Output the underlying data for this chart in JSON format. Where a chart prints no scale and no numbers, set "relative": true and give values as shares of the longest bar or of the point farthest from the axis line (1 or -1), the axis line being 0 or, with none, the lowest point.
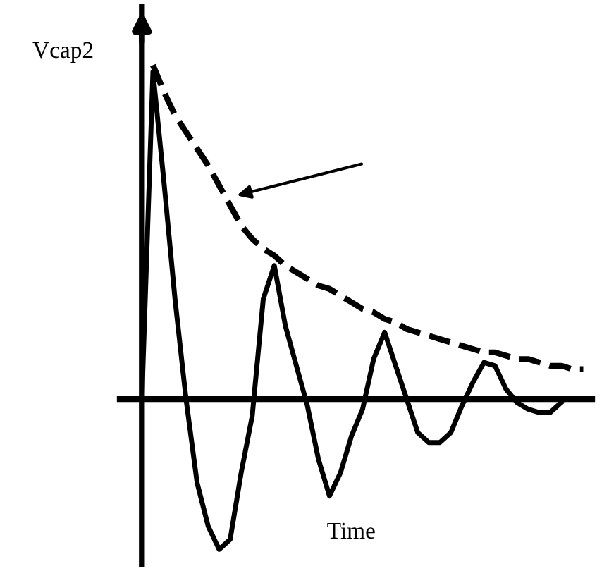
{
  "chart_data": {
    "type": "line",
    "relative": true,
    "ylabel": "Vcap2",
    "xlabel": "Time",
    "legend": false,
    "tick_labels": false,
    "categories": [
      null,
      null,
      null,
      null,
      null,
      null,
      null,
      null,
      null,
      null,
      null,
      null,
      null,
      null,
      null,
      null,
      null,
      null,
      null,
      null,
      null,
      null,
      null,
      null,
      null,
      null,
      null,
      null,
      null,
      null,
      null,
      null,
      null,
      null,
      null,
      null,
      null,
      null,
      null,
      null,
      null
    ],
    "series": [
      {
        "color": "#000000",
        "line_style": "solid",
        "values": [
          0,
          0.98,
          0.65,
          0.3,
          0,
          -0.25,
          -0.38,
          -0.45,
          -0.42,
          -0.22,
          -0.05,
          0.3,
          0.4,
          0.22,
          0.1,
          -0.02,
          -0.18,
          -0.29,
          -0.22,
          -0.11,
          -0.03,
          0.12,
          0.2,
          0.1,
          0,
          -0.1,
          -0.13,
          -0.13,
          -0.1,
          -0.02,
          0.05,
          0.11,
          0.1,
          0.03,
          -0.01,
          -0.03,
          -0.04,
          -0.04,
          -0.01,
          null,
          null
        ]
      },
      {
        "color": "#000000",
        "line_style": "dashed",
        "values": [
          null,
          1.0,
          0.92,
          0.85,
          0.8,
          0.75,
          0.7,
          0.64,
          0.58,
          0.52,
          0.48,
          0.45,
          0.43,
          0.4,
          0.38,
          0.36,
          0.34,
          0.33,
          0.31,
          0.29,
          0.27,
          0.26,
          0.24,
          0.23,
          0.21,
          0.2,
          0.19,
          0.18,
          0.17,
          0.16,
          0.15,
          0.14,
          0.14,
          0.13,
          0.12,
          0.12,
          0.11,
          0.1,
          0.1,
          0.09,
          0.09
        ]
      }
    ]
  }
}
